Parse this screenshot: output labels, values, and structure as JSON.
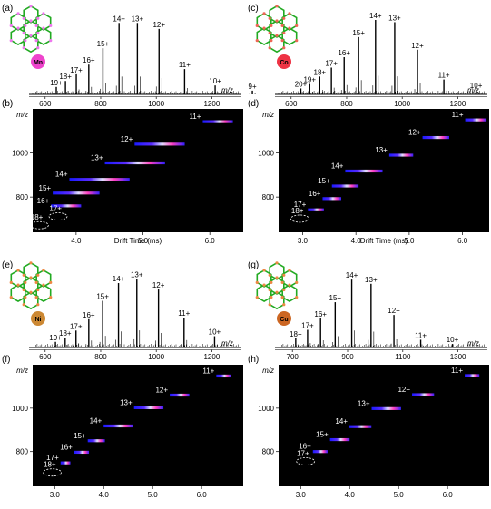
{
  "panels": [
    {
      "ms_letter": "(a)",
      "im_letter": "(b)",
      "metal": "Mn",
      "metal_color": "#ee44cc",
      "node_color": "#ee77ee",
      "ms_xticks": [
        600,
        800,
        1000,
        1200
      ],
      "ms_xrange": [
        555,
        1300
      ],
      "mz_label": "m/z",
      "ms_peaks": [
        {
          "mz": 640,
          "h": 0.1,
          "label": "19+"
        },
        {
          "mz": 673,
          "h": 0.18,
          "label": "18+"
        },
        {
          "mz": 712,
          "h": 0.27,
          "label": "17+"
        },
        {
          "mz": 757,
          "h": 0.4,
          "label": "16+"
        },
        {
          "mz": 808,
          "h": 0.62,
          "label": "15+"
        },
        {
          "mz": 866,
          "h": 0.96,
          "label": "14+"
        },
        {
          "mz": 932,
          "h": 0.96,
          "label": "13+"
        },
        {
          "mz": 1010,
          "h": 0.88,
          "label": "12+"
        },
        {
          "mz": 1102,
          "h": 0.34,
          "label": "11+"
        },
        {
          "mz": 1212,
          "h": 0.12,
          "label": "10+"
        },
        {
          "mz": 1346,
          "h": 0.05,
          "label": "9+"
        }
      ],
      "im_xticks": [
        4.0,
        5.0,
        6.0
      ],
      "im_xrange": [
        3.35,
        6.5
      ],
      "im_yticks": [
        800,
        1000
      ],
      "im_yrange": [
        640,
        1200
      ],
      "im_ylabel": "m/z",
      "im_xlabel": "Drift Time (ms)",
      "im_spots": [
        {
          "dt": 6.12,
          "mz": 1142,
          "w": 0.45,
          "label": "11+"
        },
        {
          "dt": 5.25,
          "mz": 1040,
          "w": 0.75,
          "label": "12+"
        },
        {
          "dt": 4.88,
          "mz": 955,
          "w": 0.9,
          "label": "13+"
        },
        {
          "dt": 4.35,
          "mz": 880,
          "w": 0.9,
          "label": "14+"
        },
        {
          "dt": 4.0,
          "mz": 818,
          "w": 0.7,
          "label": "15+"
        },
        {
          "dt": 3.85,
          "mz": 760,
          "w": 0.45,
          "label": "16+"
        }
      ],
      "im_circles": [
        {
          "dt": 3.73,
          "mz": 712,
          "label": "17+"
        },
        {
          "dt": 3.45,
          "mz": 672,
          "label": "18+"
        }
      ]
    },
    {
      "ms_letter": "(c)",
      "im_letter": "(d)",
      "metal": "Co",
      "metal_color": "#ee3344",
      "node_color": "#ee6655",
      "ms_xticks": [
        600,
        800,
        1000,
        1200
      ],
      "ms_xrange": [
        555,
        1300
      ],
      "mz_label": "m/z",
      "ms_peaks": [
        {
          "mz": 635,
          "h": 0.08,
          "label": "20+"
        },
        {
          "mz": 667,
          "h": 0.14,
          "label": "19+"
        },
        {
          "mz": 703,
          "h": 0.24,
          "label": "18+"
        },
        {
          "mz": 745,
          "h": 0.36,
          "label": "17+"
        },
        {
          "mz": 791,
          "h": 0.5,
          "label": "16+"
        },
        {
          "mz": 843,
          "h": 0.77,
          "label": "15+"
        },
        {
          "mz": 904,
          "h": 1.0,
          "label": "14+"
        },
        {
          "mz": 973,
          "h": 0.97,
          "label": "13+"
        },
        {
          "mz": 1055,
          "h": 0.6,
          "label": "12+"
        },
        {
          "mz": 1150,
          "h": 0.2,
          "label": "11+"
        },
        {
          "mz": 1266,
          "h": 0.06,
          "label": "10+"
        }
      ],
      "im_xticks": [
        3.0,
        4.0,
        5.0,
        6.0
      ],
      "im_xrange": [
        2.55,
        6.5
      ],
      "im_yticks": [
        800,
        1000
      ],
      "im_yrange": [
        640,
        1200
      ],
      "im_ylabel": "m/z",
      "im_xlabel": "Drift Time (ms)",
      "im_spots": [
        {
          "dt": 6.25,
          "mz": 1150,
          "w": 0.4,
          "label": "11+"
        },
        {
          "dt": 5.5,
          "mz": 1070,
          "w": 0.5,
          "label": "12+"
        },
        {
          "dt": 4.85,
          "mz": 990,
          "w": 0.45,
          "label": "13+"
        },
        {
          "dt": 4.15,
          "mz": 918,
          "w": 0.7,
          "label": "14+"
        },
        {
          "dt": 3.8,
          "mz": 850,
          "w": 0.5,
          "label": "15+"
        },
        {
          "dt": 3.55,
          "mz": 793,
          "w": 0.35,
          "label": "16+"
        },
        {
          "dt": 3.25,
          "mz": 742,
          "w": 0.3,
          "label": "17+"
        }
      ],
      "im_circles": [
        {
          "dt": 2.95,
          "mz": 702,
          "label": "18+"
        }
      ]
    },
    {
      "ms_letter": "(e)",
      "im_letter": "(f)",
      "metal": "Ni",
      "metal_color": "#cc8833",
      "node_color": "#ee8844",
      "ms_xticks": [
        600,
        800,
        1000,
        1200
      ],
      "ms_xrange": [
        555,
        1300
      ],
      "mz_label": "m/z",
      "ms_peaks": [
        {
          "mz": 637,
          "h": 0.08,
          "label": "19+"
        },
        {
          "mz": 672,
          "h": 0.14,
          "label": "18+"
        },
        {
          "mz": 711,
          "h": 0.24,
          "label": "17+"
        },
        {
          "mz": 757,
          "h": 0.4,
          "label": "16+"
        },
        {
          "mz": 807,
          "h": 0.66,
          "label": "15+"
        },
        {
          "mz": 864,
          "h": 0.91,
          "label": "14+"
        },
        {
          "mz": 930,
          "h": 0.97,
          "label": "13+"
        },
        {
          "mz": 1008,
          "h": 0.82,
          "label": "12+"
        },
        {
          "mz": 1100,
          "h": 0.42,
          "label": "11+"
        },
        {
          "mz": 1210,
          "h": 0.16,
          "label": "10+"
        }
      ],
      "im_xticks": [
        3.0,
        4.0,
        5.0,
        6.0
      ],
      "im_xrange": [
        2.55,
        6.85
      ],
      "im_yticks": [
        800,
        1000
      ],
      "im_yrange": [
        640,
        1200
      ],
      "im_ylabel": "m/z",
      "im_xlabel": "",
      "im_spots": [
        {
          "dt": 6.45,
          "mz": 1148,
          "w": 0.3,
          "label": "11+"
        },
        {
          "dt": 5.55,
          "mz": 1060,
          "w": 0.4,
          "label": "12+"
        },
        {
          "dt": 4.92,
          "mz": 1002,
          "w": 0.6,
          "label": "13+"
        },
        {
          "dt": 4.3,
          "mz": 918,
          "w": 0.6,
          "label": "14+"
        },
        {
          "dt": 3.85,
          "mz": 850,
          "w": 0.35,
          "label": "15+"
        },
        {
          "dt": 3.55,
          "mz": 797,
          "w": 0.3,
          "label": "16+"
        },
        {
          "dt": 3.22,
          "mz": 748,
          "w": 0.2,
          "label": "17+"
        }
      ],
      "im_circles": [
        {
          "dt": 2.95,
          "mz": 704,
          "label": "18+"
        }
      ]
    },
    {
      "ms_letter": "(g)",
      "im_letter": "(h)",
      "metal": "Cu",
      "metal_color": "#cc6622",
      "node_color": "#ee8844",
      "ms_xticks": [
        700,
        900,
        1100,
        1300
      ],
      "ms_xrange": [
        650,
        1400
      ],
      "mz_label": "m/z",
      "ms_peaks": [
        {
          "mz": 712,
          "h": 0.13,
          "label": "18+"
        },
        {
          "mz": 755,
          "h": 0.25,
          "label": "17+"
        },
        {
          "mz": 802,
          "h": 0.41,
          "label": "16+"
        },
        {
          "mz": 855,
          "h": 0.64,
          "label": "15+"
        },
        {
          "mz": 915,
          "h": 0.96,
          "label": "14+"
        },
        {
          "mz": 985,
          "h": 0.9,
          "label": "13+"
        },
        {
          "mz": 1068,
          "h": 0.46,
          "label": "12+"
        },
        {
          "mz": 1165,
          "h": 0.11,
          "label": "11+"
        },
        {
          "mz": 1280,
          "h": 0.05,
          "label": "10+"
        }
      ],
      "im_xticks": [
        3.0,
        4.0,
        5.0,
        6.0
      ],
      "im_xrange": [
        2.55,
        6.85
      ],
      "im_yticks": [
        800,
        1000
      ],
      "im_yrange": [
        640,
        1200
      ],
      "im_ylabel": "m/z",
      "im_xlabel": "",
      "im_spots": [
        {
          "dt": 6.5,
          "mz": 1150,
          "w": 0.3,
          "label": "11+"
        },
        {
          "dt": 5.5,
          "mz": 1062,
          "w": 0.45,
          "label": "12+"
        },
        {
          "dt": 4.75,
          "mz": 998,
          "w": 0.6,
          "label": "13+"
        },
        {
          "dt": 4.22,
          "mz": 915,
          "w": 0.45,
          "label": "14+"
        },
        {
          "dt": 3.8,
          "mz": 855,
          "w": 0.4,
          "label": "15+"
        },
        {
          "dt": 3.4,
          "mz": 800,
          "w": 0.3,
          "label": "16+"
        }
      ],
      "im_circles": [
        {
          "dt": 3.1,
          "mz": 755,
          "label": "17+"
        }
      ]
    }
  ],
  "chart_data": [
    {
      "type": "bar",
      "panel": "(a)",
      "xlabel": "m/z",
      "categories": [
        "19+",
        "18+",
        "17+",
        "16+",
        "15+",
        "14+",
        "13+",
        "12+",
        "11+",
        "10+",
        "9+"
      ],
      "x": [
        640,
        673,
        712,
        757,
        808,
        866,
        932,
        1010,
        1102,
        1212,
        1346
      ],
      "values": [
        0.1,
        0.18,
        0.27,
        0.4,
        0.62,
        0.96,
        0.96,
        0.88,
        0.34,
        0.12,
        0.05
      ]
    },
    {
      "type": "heatmap",
      "panel": "(b)",
      "xlabel": "Drift Time (ms)",
      "ylabel": "m/z",
      "series": [
        {
          "name": "11+",
          "x": 6.12,
          "y": 1142
        },
        {
          "name": "12+",
          "x": 5.25,
          "y": 1040
        },
        {
          "name": "13+",
          "x": 4.88,
          "y": 955
        },
        {
          "name": "14+",
          "x": 4.35,
          "y": 880
        },
        {
          "name": "15+",
          "x": 4.0,
          "y": 818
        },
        {
          "name": "16+",
          "x": 3.85,
          "y": 760
        },
        {
          "name": "17+",
          "x": 3.73,
          "y": 712
        },
        {
          "name": "18+",
          "x": 3.45,
          "y": 672
        }
      ]
    },
    {
      "type": "bar",
      "panel": "(c)",
      "xlabel": "m/z",
      "categories": [
        "20+",
        "19+",
        "18+",
        "17+",
        "16+",
        "15+",
        "14+",
        "13+",
        "12+",
        "11+",
        "10+"
      ],
      "x": [
        635,
        667,
        703,
        745,
        791,
        843,
        904,
        973,
        1055,
        1150,
        1266
      ],
      "values": [
        0.08,
        0.14,
        0.24,
        0.36,
        0.5,
        0.77,
        1.0,
        0.97,
        0.6,
        0.2,
        0.06
      ]
    },
    {
      "type": "heatmap",
      "panel": "(d)",
      "xlabel": "Drift Time (ms)",
      "ylabel": "m/z",
      "series": [
        {
          "name": "11+",
          "x": 6.25,
          "y": 1150
        },
        {
          "name": "12+",
          "x": 5.5,
          "y": 1070
        },
        {
          "name": "13+",
          "x": 4.85,
          "y": 990
        },
        {
          "name": "14+",
          "x": 4.15,
          "y": 918
        },
        {
          "name": "15+",
          "x": 3.8,
          "y": 850
        },
        {
          "name": "16+",
          "x": 3.55,
          "y": 793
        },
        {
          "name": "17+",
          "x": 3.25,
          "y": 742
        },
        {
          "name": "18+",
          "x": 2.95,
          "y": 702
        }
      ]
    },
    {
      "type": "bar",
      "panel": "(e)",
      "xlabel": "m/z",
      "categories": [
        "19+",
        "18+",
        "17+",
        "16+",
        "15+",
        "14+",
        "13+",
        "12+",
        "11+",
        "10+"
      ],
      "x": [
        637,
        672,
        711,
        757,
        807,
        864,
        930,
        1008,
        1100,
        1210
      ],
      "values": [
        0.08,
        0.14,
        0.24,
        0.4,
        0.66,
        0.91,
        0.97,
        0.82,
        0.42,
        0.16
      ]
    },
    {
      "type": "heatmap",
      "panel": "(f)",
      "xlabel": "",
      "ylabel": "m/z",
      "series": [
        {
          "name": "11+",
          "x": 6.45,
          "y": 1148
        },
        {
          "name": "12+",
          "x": 5.55,
          "y": 1060
        },
        {
          "name": "13+",
          "x": 4.92,
          "y": 1002
        },
        {
          "name": "14+",
          "x": 4.3,
          "y": 918
        },
        {
          "name": "15+",
          "x": 3.85,
          "y": 850
        },
        {
          "name": "16+",
          "x": 3.55,
          "y": 797
        },
        {
          "name": "17+",
          "x": 3.22,
          "y": 748
        },
        {
          "name": "18+",
          "x": 2.95,
          "y": 704
        }
      ]
    },
    {
      "type": "bar",
      "panel": "(g)",
      "xlabel": "m/z",
      "categories": [
        "18+",
        "17+",
        "16+",
        "15+",
        "14+",
        "13+",
        "12+",
        "11+",
        "10+"
      ],
      "x": [
        712,
        755,
        802,
        855,
        915,
        985,
        1068,
        1165,
        1280
      ],
      "values": [
        0.13,
        0.25,
        0.41,
        0.64,
        0.96,
        0.9,
        0.46,
        0.11,
        0.05
      ]
    },
    {
      "type": "heatmap",
      "panel": "(h)",
      "xlabel": "",
      "ylabel": "m/z",
      "series": [
        {
          "name": "11+",
          "x": 6.5,
          "y": 1150
        },
        {
          "name": "12+",
          "x": 5.5,
          "y": 1062
        },
        {
          "name": "13+",
          "x": 4.75,
          "y": 998
        },
        {
          "name": "14+",
          "x": 4.22,
          "y": 915
        },
        {
          "name": "15+",
          "x": 3.8,
          "y": 855
        },
        {
          "name": "16+",
          "x": 3.4,
          "y": 800
        },
        {
          "name": "17+",
          "x": 3.1,
          "y": 755
        }
      ]
    }
  ]
}
